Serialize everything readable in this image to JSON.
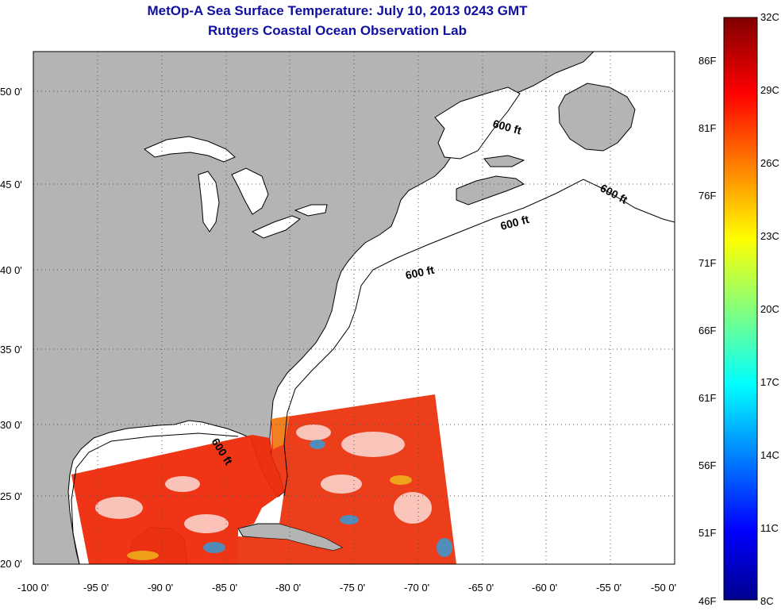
{
  "title": {
    "line1": "MetOp-A Sea Surface Temperature:  July 10, 2013 0243 GMT",
    "line2": "Rutgers Coastal Ocean Observation Lab"
  },
  "axes": {
    "lon_labels": [
      "-100 0'",
      "-95 0'",
      "-90 0'",
      "-85 0'",
      "-80 0'",
      "-75 0'",
      "-70 0'",
      "-65 0'",
      "-60 0'",
      "-55 0'",
      "-50 0'"
    ],
    "lat_labels": [
      "50 0'",
      "45 0'",
      "40 0'",
      "35 0'",
      "30 0'",
      "25 0'",
      "20 0'"
    ],
    "lon_range": [
      -100,
      -50
    ],
    "lat_range": [
      20,
      52.5
    ]
  },
  "contour_label": "600 ft",
  "colorbar": {
    "celsius_labels": [
      "32C",
      "29C",
      "26C",
      "23C",
      "20C",
      "17C",
      "14C",
      "11C",
      "8C"
    ],
    "fahrenheit_labels": [
      "86F",
      "81F",
      "76F",
      "71F",
      "66F",
      "61F",
      "56F",
      "51F",
      "46F"
    ],
    "range_c": [
      8,
      32
    ]
  },
  "colors": {
    "land": "#b4b4b4",
    "ocean": "#ffffff",
    "title": "#1010a0",
    "sst_warm": "#ee2a0a"
  }
}
